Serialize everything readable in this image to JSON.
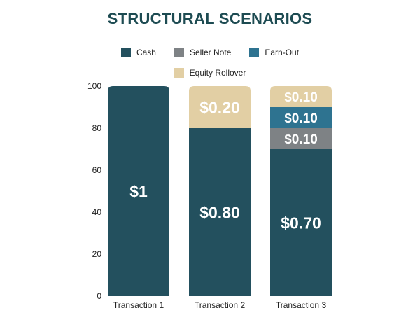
{
  "chart_data": {
    "type": "bar",
    "stacked": true,
    "title": "STRUCTURAL SCENARIOS",
    "categories": [
      "Transaction 1",
      "Transaction 2",
      "Transaction 3"
    ],
    "series": [
      {
        "name": "Cash",
        "color": "#23505e",
        "values": [
          100,
          80,
          70
        ],
        "labels": [
          "$1",
          "$0.80",
          "$0.70"
        ]
      },
      {
        "name": "Seller Note",
        "color": "#7e8285",
        "values": [
          0,
          0,
          10
        ],
        "labels": [
          "",
          "",
          "$0.10"
        ]
      },
      {
        "name": "Earn-Out",
        "color": "#2e7390",
        "values": [
          0,
          0,
          10
        ],
        "labels": [
          "",
          "",
          "$0.10"
        ]
      },
      {
        "name": "Equity Rollover",
        "color": "#e2cfa4",
        "values": [
          0,
          20,
          10
        ],
        "labels": [
          "",
          "$0.20",
          "$0.10"
        ]
      }
    ],
    "yticks": [
      0,
      20,
      40,
      60,
      80,
      100
    ],
    "ylim": [
      0,
      100
    ],
    "xlabel": "",
    "ylabel": "",
    "legend_position": "top",
    "grid": false,
    "title_color": "#1d4b52"
  }
}
